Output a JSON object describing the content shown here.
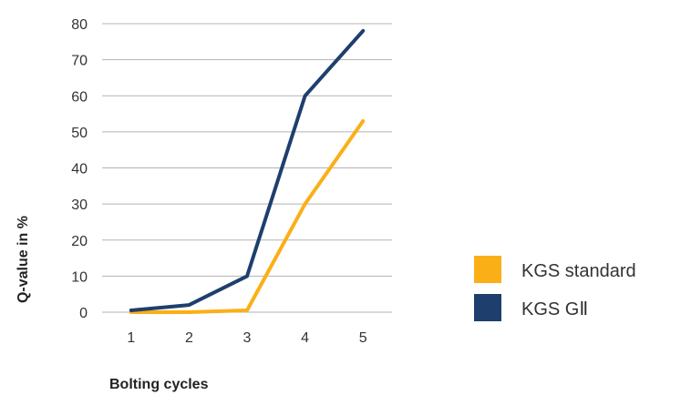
{
  "chart_data": {
    "type": "line",
    "xlabel": "Bolting cycles",
    "ylabel": "Q-value in %",
    "categories": [
      "1",
      "2",
      "3",
      "4",
      "5"
    ],
    "ylim": [
      0,
      80
    ],
    "yticks": [
      "0",
      "10",
      "20",
      "30",
      "40",
      "50",
      "60",
      "70",
      "80"
    ],
    "grid": true,
    "legend_position": "right",
    "series": [
      {
        "name": "KGS standard",
        "color": "#FBAF17",
        "values": [
          0,
          0,
          0.5,
          30,
          53
        ]
      },
      {
        "name": "KGS GⅡ",
        "color": "#1E3F6E",
        "values": [
          0.5,
          2,
          10,
          60,
          78
        ]
      }
    ]
  }
}
